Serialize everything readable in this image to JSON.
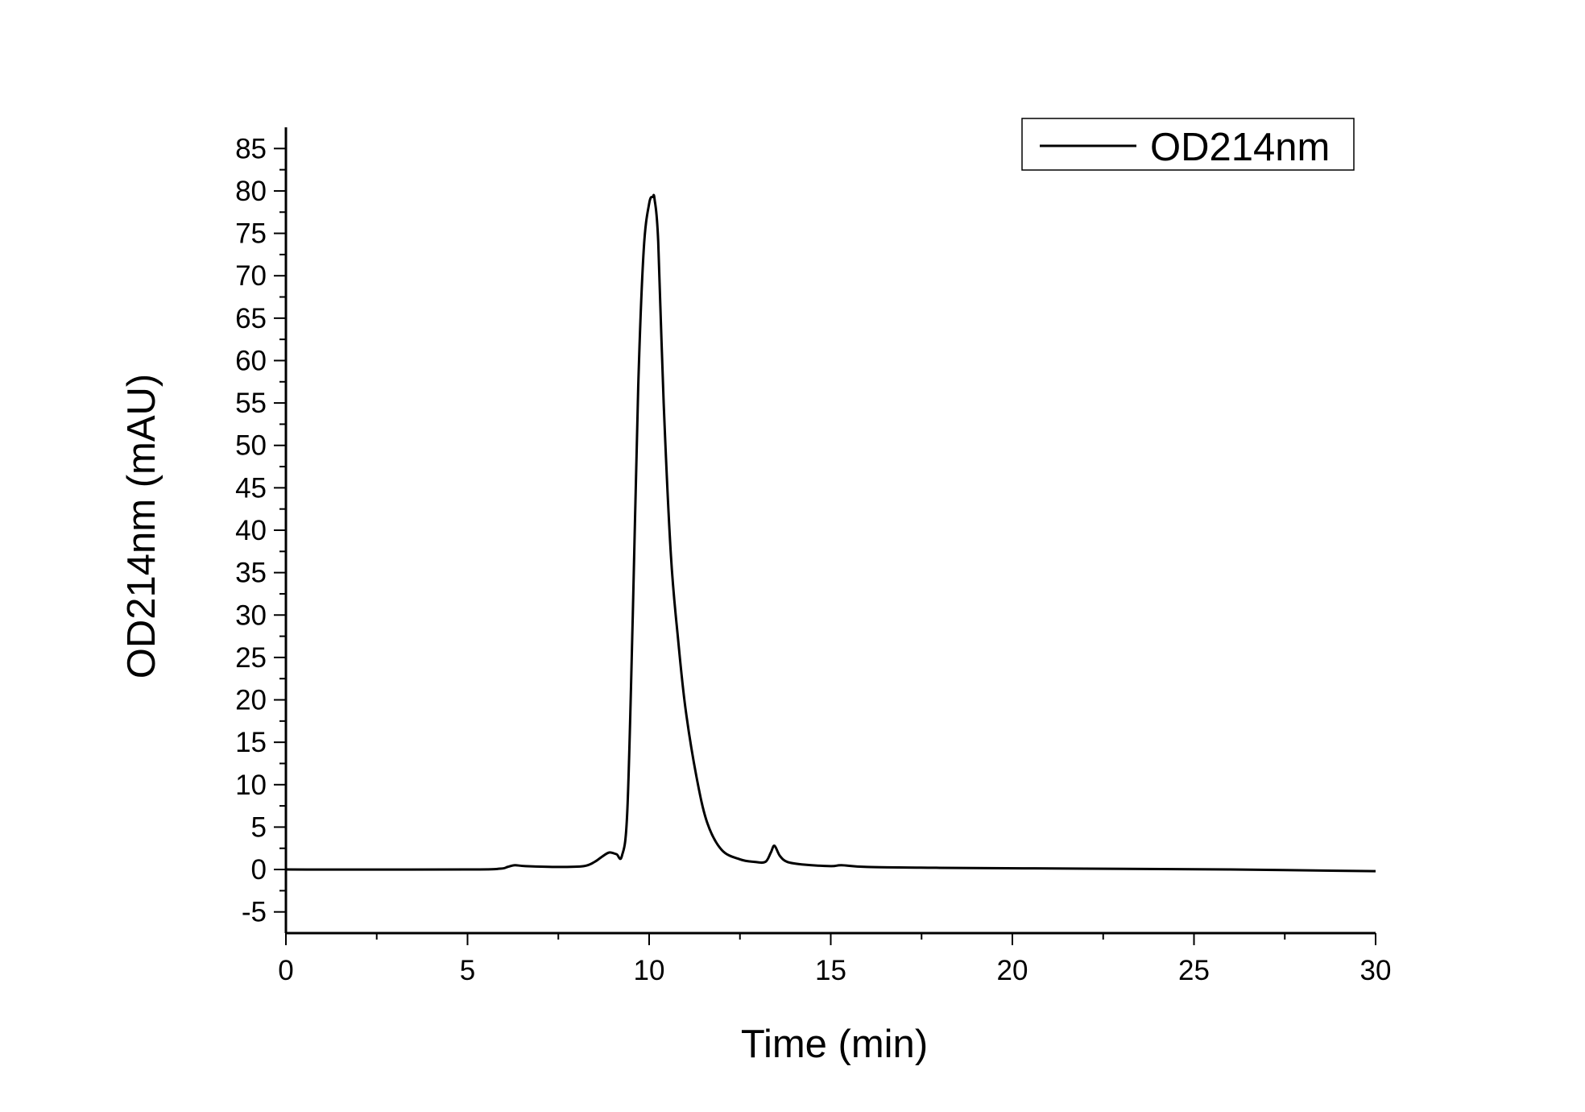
{
  "chart_data": {
    "type": "line",
    "xlabel": "Time (min)",
    "ylabel": "OD214nm (mAU)",
    "xlim": [
      0,
      30
    ],
    "ylim": [
      -7.5,
      87.5
    ],
    "xticks": [
      0,
      5,
      10,
      15,
      20,
      25,
      30
    ],
    "xtick_labels": [
      "0",
      "5",
      "10",
      "15",
      "20",
      "25",
      "30"
    ],
    "yticks": [
      -5,
      0,
      5,
      10,
      15,
      20,
      25,
      30,
      35,
      40,
      45,
      50,
      55,
      60,
      65,
      70,
      75,
      80,
      85
    ],
    "ytick_labels": [
      "-5",
      "0",
      "5",
      "10",
      "15",
      "20",
      "25",
      "30",
      "35",
      "40",
      "45",
      "50",
      "55",
      "60",
      "65",
      "70",
      "75",
      "80",
      "85"
    ],
    "grid": false,
    "legend_position": "top-right",
    "series": [
      {
        "name": "OD214nm",
        "color": "#000000",
        "x": [
          0,
          5,
          5.9,
          6.1,
          6.3,
          6.6,
          7.5,
          8.2,
          8.5,
          8.7,
          8.9,
          9.1,
          9.25,
          9.4,
          9.55,
          9.7,
          9.85,
          10.0,
          10.1,
          10.15,
          10.25,
          10.4,
          10.6,
          10.8,
          11.0,
          11.3,
          11.6,
          12.0,
          12.5,
          12.9,
          13.2,
          13.35,
          13.45,
          13.6,
          13.8,
          14.2,
          15.0,
          15.3,
          16.0,
          18.0,
          22.0,
          26.0,
          30.0
        ],
        "y": [
          0.0,
          0.0,
          0.1,
          0.3,
          0.5,
          0.4,
          0.3,
          0.4,
          0.9,
          1.5,
          2.0,
          1.8,
          1.6,
          7.0,
          30.0,
          57.0,
          73.0,
          78.5,
          79.3,
          79.0,
          74.0,
          55.0,
          37.0,
          27.0,
          19.0,
          11.0,
          5.5,
          2.3,
          1.2,
          0.9,
          0.9,
          2.0,
          2.8,
          1.6,
          0.9,
          0.6,
          0.4,
          0.5,
          0.3,
          0.2,
          0.1,
          0.0,
          -0.2
        ]
      }
    ]
  }
}
